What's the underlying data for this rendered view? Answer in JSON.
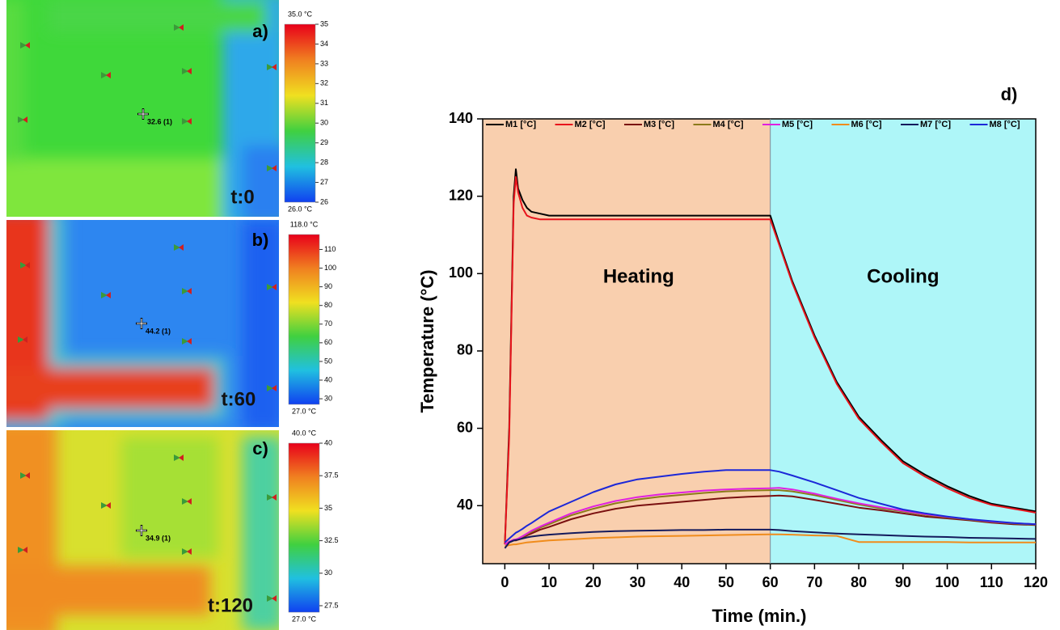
{
  "thermal_panels": [
    {
      "letter": "a)",
      "time": "t:0",
      "reading": "32.6 (1)",
      "max_label": "35.0 °C",
      "min_label": "26.0 °C",
      "scale_lim": [
        26,
        35
      ],
      "scale_ticks": [
        26,
        27,
        28,
        29,
        30,
        31,
        32,
        33,
        34,
        35
      ]
    },
    {
      "letter": "b)",
      "time": "t:60",
      "reading": "44.2 (1)",
      "max_label": "118.0 °C",
      "min_label": "27.0 °C",
      "scale_lim": [
        27,
        118
      ],
      "scale_ticks": [
        30,
        40,
        50,
        60,
        70,
        80,
        90,
        100,
        110
      ]
    },
    {
      "letter": "c)",
      "time": "t:120",
      "reading": "34.9 (1)",
      "max_label": "40.0 °C",
      "min_label": "27.0 °C",
      "scale_lim": [
        27,
        40
      ],
      "scale_ticks": [
        27.5,
        30,
        32.5,
        35,
        37.5,
        40
      ]
    }
  ],
  "chart_data": {
    "type": "line",
    "panel": "d)",
    "x_label": "Time (min.)",
    "y_label": "Temperature (°C)",
    "xlim": [
      -5,
      120
    ],
    "ylim": [
      25,
      140
    ],
    "xticks": [
      0,
      10,
      20,
      30,
      40,
      50,
      60,
      70,
      80,
      90,
      100,
      110,
      120
    ],
    "yticks": [
      40,
      60,
      80,
      100,
      120,
      140
    ],
    "split": 60,
    "regions": [
      {
        "label": "Heating",
        "color": "#f9cfae"
      },
      {
        "label": "Cooling",
        "color": "#aef6f8"
      }
    ],
    "x": [
      0,
      1,
      2,
      2.5,
      3,
      4,
      5,
      6,
      8,
      10,
      15,
      20,
      25,
      30,
      35,
      40,
      45,
      50,
      55,
      60,
      62,
      65,
      70,
      75,
      80,
      85,
      90,
      95,
      100,
      105,
      110,
      115,
      120
    ],
    "series": [
      {
        "name": "M1 [°C]",
        "color": "#000000",
        "values": [
          30,
          60,
          120,
          127,
          122,
          119,
          117,
          116,
          115.5,
          115,
          115,
          115,
          115,
          115,
          115,
          115,
          115,
          115,
          115,
          115,
          108,
          98,
          84,
          72,
          63,
          57,
          51.5,
          48,
          45,
          42.5,
          40.5,
          39.5,
          38.5
        ]
      },
      {
        "name": "M2 [°C]",
        "color": "#e8141c",
        "values": [
          30,
          58,
          118,
          125,
          121,
          117,
          115,
          114.5,
          114,
          114,
          114,
          114,
          114,
          114,
          114,
          114,
          114,
          114,
          114,
          114,
          107.5,
          97.5,
          83.5,
          71.5,
          62.5,
          56.5,
          51,
          47.5,
          44.5,
          42,
          40.2,
          39.2,
          38.2
        ]
      },
      {
        "name": "M3 [°C]",
        "color": "#7a1010",
        "values": [
          30,
          30.5,
          31,
          31,
          31.2,
          31.8,
          32.3,
          32.8,
          33.8,
          34.5,
          36.5,
          38,
          39.2,
          40,
          40.5,
          41,
          41.5,
          42,
          42.3,
          42.5,
          42.6,
          42.4,
          41.5,
          40.5,
          39.5,
          38.8,
          38,
          37.2,
          36.7,
          36.2,
          35.6,
          35.2,
          35
        ]
      },
      {
        "name": "M4 [°C]",
        "color": "#8c7a1a",
        "values": [
          30,
          30.6,
          31.1,
          31.2,
          31.4,
          32,
          32.6,
          33.2,
          34.3,
          35.2,
          37.5,
          39.2,
          40.6,
          41.6,
          42.3,
          42.8,
          43.3,
          43.7,
          43.9,
          44,
          44,
          43.7,
          42.7,
          41.5,
          40.3,
          39.3,
          38.5,
          37.6,
          37,
          36.4,
          35.8,
          35.4,
          35.1
        ]
      },
      {
        "name": "M5 [°C]",
        "color": "#e020e0",
        "values": [
          30,
          30.7,
          31.2,
          31.3,
          31.5,
          32.1,
          32.8,
          33.5,
          34.6,
          35.6,
          38,
          39.8,
          41.2,
          42.2,
          42.9,
          43.4,
          43.9,
          44.2,
          44.4,
          44.5,
          44.6,
          44.2,
          43.1,
          41.8,
          40.6,
          39.6,
          38.7,
          37.8,
          37.1,
          36.5,
          35.9,
          35.5,
          35.2
        ]
      },
      {
        "name": "M6 [°C]",
        "color": "#f08c1c",
        "values": [
          29.5,
          29.8,
          30,
          30,
          30.1,
          30.3,
          30.5,
          30.6,
          30.8,
          31,
          31.3,
          31.6,
          31.8,
          32,
          32.1,
          32.2,
          32.3,
          32.4,
          32.5,
          32.6,
          32.6,
          32.5,
          32.3,
          32.2,
          30.6,
          30.6,
          30.6,
          30.6,
          30.6,
          30.5,
          30.5,
          30.5,
          30.5
        ]
      },
      {
        "name": "M7 [°C]",
        "color": "#141a5c",
        "values": [
          29,
          30.5,
          31,
          31.1,
          31.2,
          31.5,
          31.8,
          32,
          32.3,
          32.5,
          32.9,
          33.2,
          33.4,
          33.5,
          33.6,
          33.7,
          33.7,
          33.8,
          33.8,
          33.8,
          33.7,
          33.4,
          33.1,
          32.8,
          32.6,
          32.4,
          32.2,
          32,
          31.9,
          31.7,
          31.6,
          31.5,
          31.4
        ]
      },
      {
        "name": "M8 [°C]",
        "color": "#1c28d8",
        "values": [
          30.5,
          31.5,
          32.5,
          33,
          33.3,
          34,
          34.8,
          35.5,
          37,
          38.5,
          41,
          43.5,
          45.5,
          46.8,
          47.5,
          48.2,
          48.8,
          49.2,
          49.2,
          49.2,
          48.8,
          47.8,
          46,
          44,
          42,
          40.5,
          39,
          38,
          37.2,
          36.5,
          36,
          35.5,
          35.2
        ]
      }
    ]
  }
}
